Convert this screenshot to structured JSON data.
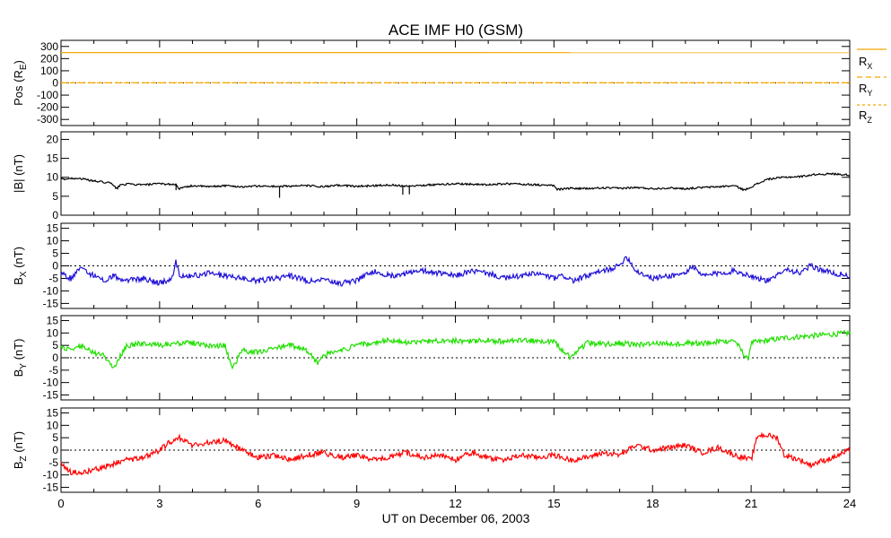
{
  "title": "ACE IMF H0 (GSM)",
  "xlabel": "UT on December 06, 2003",
  "x_ticks": [
    "0",
    "3",
    "6",
    "9",
    "12",
    "15",
    "18",
    "21",
    "24"
  ],
  "chart_data": [
    {
      "type": "line",
      "name": "position",
      "ylabel": "Pos (R_E)",
      "ylim": [
        -350,
        350
      ],
      "y_ticks": [
        300,
        200,
        100,
        0,
        -100,
        -200,
        -300
      ],
      "zero_line": true,
      "series": [
        {
          "name": "R_X",
          "color": "#f5a800",
          "x": [
            0,
            24
          ],
          "values": [
            250,
            249
          ]
        },
        {
          "name": "R_Y",
          "color": "#f5a800",
          "x": [
            0,
            24
          ],
          "values": [
            1,
            1
          ]
        },
        {
          "name": "R_Z",
          "color": "#f5a800",
          "x": [
            0,
            24
          ],
          "values": [
            2,
            2
          ]
        }
      ],
      "legend": [
        "R_X",
        "R_Y",
        "R_Z"
      ]
    },
    {
      "type": "line",
      "name": "btotal",
      "ylabel": "|B| (nT)",
      "ylim": [
        0,
        22
      ],
      "y_ticks": [
        20,
        15,
        10,
        5,
        0
      ],
      "zero_line": false,
      "series": [
        {
          "name": "|B|",
          "color": "#000000",
          "x": [
            0,
            0.5,
            1,
            1.5,
            1.7,
            1.8,
            2,
            2.5,
            3,
            3.5,
            3.6,
            4,
            4.5,
            5,
            5.5,
            6,
            6.5,
            6.7,
            7,
            7.5,
            8,
            8.5,
            9,
            9.5,
            10,
            10.5,
            11,
            11.5,
            12,
            12.5,
            13,
            13.5,
            14,
            14.5,
            15,
            15.1,
            15.5,
            16,
            16.5,
            17,
            17.5,
            18,
            18.5,
            19,
            19.5,
            20,
            20.5,
            20.8,
            21,
            21.5,
            22,
            22.5,
            23,
            23.5,
            24
          ],
          "values": [
            9.5,
            9.8,
            9,
            8.5,
            7,
            8,
            8.2,
            8,
            8.3,
            8.1,
            7,
            7.8,
            7.5,
            7.8,
            7.5,
            7.7,
            7.6,
            7.6,
            7.7,
            7.8,
            7.5,
            7.9,
            7.6,
            7.8,
            8,
            7.7,
            7.9,
            8.1,
            8.3,
            8.2,
            8,
            8.3,
            8.2,
            8,
            7.8,
            6.8,
            7.1,
            7,
            7.2,
            7.1,
            7.3,
            7,
            7.2,
            7,
            7.3,
            7.5,
            7.8,
            6.6,
            7.5,
            9.5,
            10,
            10.2,
            10.8,
            10.9,
            10.6
          ]
        }
      ],
      "spikes": [
        {
          "x": 6.65,
          "values": [
            7.7,
            4.6
          ]
        },
        {
          "x": 10.4,
          "values": [
            7.8,
            5.4
          ]
        },
        {
          "x": 10.6,
          "values": [
            7.8,
            5.5
          ]
        },
        {
          "x": 3.5,
          "values": [
            8.2,
            6.6
          ]
        }
      ]
    },
    {
      "type": "line",
      "name": "bx",
      "ylabel": "B_X (nT)",
      "ylim": [
        -17,
        17
      ],
      "y_ticks": [
        15,
        10,
        5,
        0,
        -5,
        -10,
        -15
      ],
      "zero_line": true,
      "series": [
        {
          "name": "B_X",
          "color": "#2010d8",
          "x": [
            0,
            0.3,
            0.6,
            1,
            1.3,
            1.6,
            2,
            2.5,
            3,
            3.4,
            3.5,
            3.6,
            4,
            4.5,
            5,
            5.5,
            6,
            6.5,
            7,
            7.5,
            8,
            8.5,
            9,
            9.3,
            9.6,
            10,
            10.5,
            11,
            11.5,
            12,
            12.5,
            13,
            13.5,
            14,
            14.5,
            15,
            15.3,
            15.6,
            16,
            16.5,
            17,
            17.2,
            17.5,
            18,
            18.5,
            19,
            19.2,
            19.5,
            20,
            20.5,
            21,
            21.5,
            21.7,
            22,
            22.5,
            22.8,
            23,
            23.5,
            24
          ],
          "values": [
            -3,
            -5,
            -1,
            -4,
            -6,
            -4,
            -6,
            -5,
            -7,
            -5,
            2,
            -4,
            -4,
            -3,
            -4,
            -5,
            -6,
            -5,
            -4,
            -6,
            -5,
            -7,
            -6,
            -3,
            -2,
            -4,
            -3,
            -2,
            -3,
            -4,
            -2,
            -3,
            -5,
            -4,
            -3,
            -5,
            -4,
            -6,
            -4,
            -2,
            0,
            4,
            -2,
            -5,
            -4,
            -3,
            0,
            -4,
            -3,
            -2,
            -4,
            -6,
            -5,
            -1,
            -3,
            0,
            -1,
            -3,
            -4
          ]
        }
      ]
    },
    {
      "type": "line",
      "name": "by",
      "ylabel": "B_Y (nT)",
      "ylim": [
        -17,
        17
      ],
      "y_ticks": [
        15,
        10,
        5,
        0,
        -5,
        -10,
        -15
      ],
      "zero_line": true,
      "series": [
        {
          "name": "B_Y",
          "color": "#20e000",
          "x": [
            0,
            0.3,
            0.6,
            1,
            1.3,
            1.6,
            2,
            2.5,
            3,
            3.5,
            4,
            4.5,
            5,
            5.2,
            5.5,
            6,
            6.5,
            7,
            7.5,
            7.8,
            8,
            8.5,
            9,
            9.5,
            10,
            10.5,
            11,
            11.5,
            12,
            12.5,
            13,
            13.5,
            14,
            14.5,
            15,
            15.5,
            16,
            16.5,
            17,
            17.5,
            18,
            18.5,
            19,
            19.5,
            20,
            20.5,
            20.9,
            21,
            21.5,
            22,
            22.5,
            23,
            23.5,
            24
          ],
          "values": [
            4,
            3,
            5,
            2,
            1,
            -4,
            5,
            6,
            5,
            6,
            6,
            5,
            5,
            -5,
            3,
            2,
            4,
            5,
            3,
            -2,
            1,
            3,
            5,
            6,
            7,
            6,
            6.5,
            7,
            7,
            6.5,
            7,
            6.5,
            7,
            6.8,
            6.5,
            0,
            6,
            5.5,
            6,
            5,
            6,
            5.5,
            6,
            5.8,
            6.5,
            7,
            -1,
            6,
            7,
            8,
            8.5,
            9,
            9.5,
            10
          ]
        }
      ]
    },
    {
      "type": "line",
      "name": "bz",
      "ylabel": "B_Z (nT)",
      "ylim": [
        -17,
        17
      ],
      "y_ticks": [
        15,
        10,
        5,
        0,
        -5,
        -10,
        -15
      ],
      "zero_line": true,
      "series": [
        {
          "name": "B_Z",
          "color": "#ff0000",
          "x": [
            0,
            0.3,
            0.6,
            1,
            1.5,
            2,
            2.5,
            3,
            3.3,
            3.6,
            4,
            4.5,
            5,
            5.5,
            6,
            6.5,
            7,
            7.5,
            8,
            8.5,
            9,
            9.5,
            10,
            10.5,
            11,
            11.5,
            12,
            12.5,
            13,
            13.5,
            14,
            14.5,
            15,
            15.5,
            16,
            16.5,
            17,
            17.5,
            18,
            18.5,
            19,
            19.5,
            20,
            20.5,
            21,
            21.2,
            21.5,
            21.8,
            22,
            22.5,
            22.8,
            23,
            23.5,
            24
          ],
          "values": [
            -5,
            -9,
            -9,
            -8,
            -6,
            -4,
            -3,
            0,
            3,
            5,
            2,
            3,
            4,
            0,
            -3,
            -2,
            -4,
            -2,
            -1,
            -3,
            -2,
            -4,
            -3,
            -1,
            -3,
            -2,
            -4,
            -1,
            -3,
            -4,
            -2,
            -3,
            -2,
            -4,
            -3,
            -1,
            -2,
            2,
            0,
            1,
            2,
            -1,
            1,
            -2,
            -4,
            6,
            6,
            5,
            -2,
            -4,
            -6,
            -5,
            -3,
            0
          ]
        }
      ]
    }
  ],
  "legend_labels": {
    "rx": "R",
    "ry": "R",
    "rz": "R",
    "sub_x": "X",
    "sub_y": "Y",
    "sub_z": "Z"
  }
}
